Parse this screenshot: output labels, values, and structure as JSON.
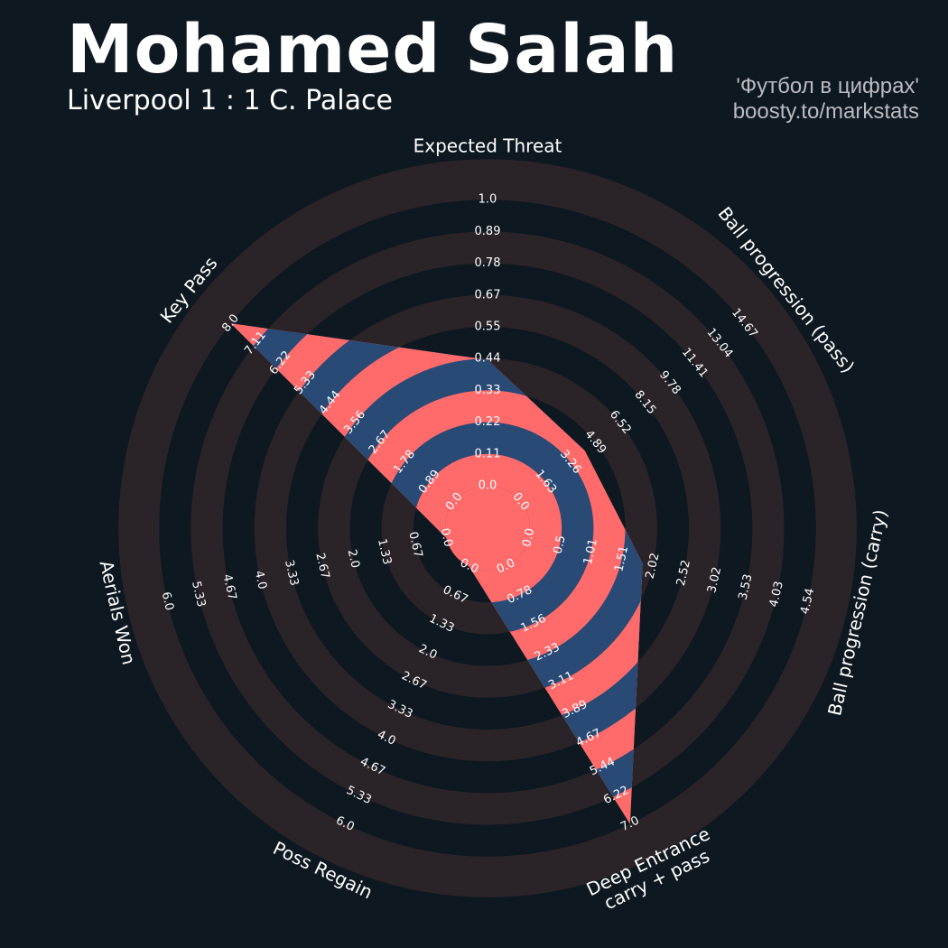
{
  "header": {
    "title": "Mohamed Salah",
    "subtitle": "Liverpool 1 : 1 C. Palace",
    "credit_line1": "'Футбол в цифрах'",
    "credit_line2": "boosty.to/markstats"
  },
  "chart_data": {
    "type": "radar",
    "colors": {
      "background": "#0e1820",
      "ring": "#2a2429",
      "fill_a": "#284a75",
      "fill_b": "#ff6b6b",
      "text": "#ffffff"
    },
    "axes": [
      {
        "label": "Expected Threat",
        "min": 0,
        "max": 1.0,
        "value": 0.44,
        "ticks": [
          "0.0",
          "0.11",
          "0.22",
          "0.33",
          "0.44",
          "0.55",
          "0.67",
          "0.78",
          "0.89",
          "1.0"
        ]
      },
      {
        "label": "Ball progression (pass)",
        "min": 0,
        "max": 14.67,
        "value": 4.2,
        "ticks": [
          "0.0",
          "1.63",
          "3.26",
          "4.89",
          "6.52",
          "8.15",
          "9.78",
          "11.41",
          "13.04",
          "14.67"
        ]
      },
      {
        "label": "Ball progression (carry)",
        "min": 0,
        "max": 4.54,
        "value": 1.85,
        "ticks": [
          "0.0",
          "0.5",
          "1.01",
          "1.51",
          "2.02",
          "2.52",
          "3.02",
          "3.53",
          "4.03",
          "4.54"
        ]
      },
      {
        "label": "Deep Entrance\ncarry + pass",
        "min": 0,
        "max": 7.0,
        "value": 7.0,
        "ticks": [
          "0.0",
          "0.78",
          "1.56",
          "2.33",
          "3.11",
          "3.89",
          "4.67",
          "5.44",
          "6.22",
          "7.0"
        ]
      },
      {
        "label": "Poss Regain",
        "min": 0,
        "max": 6.0,
        "value": 0.0,
        "ticks": [
          "0.0",
          "0.67",
          "1.33",
          "2.0",
          "2.67",
          "3.33",
          "4.0",
          "4.67",
          "5.33",
          "6.0"
        ]
      },
      {
        "label": "Aerials Won",
        "min": 0,
        "max": 6.0,
        "value": 0.0,
        "ticks": [
          "0.0",
          "0.67",
          "1.33",
          "2.0",
          "2.67",
          "3.33",
          "4.0",
          "4.67",
          "5.33",
          "6.0"
        ]
      },
      {
        "label": "Key Pass",
        "min": 0,
        "max": 8.0,
        "value": 8.0,
        "ticks": [
          "0.0",
          "0.89",
          "1.78",
          "2.67",
          "3.56",
          "4.44",
          "5.33",
          "6.22",
          "7.11",
          "8.0"
        ]
      }
    ]
  }
}
